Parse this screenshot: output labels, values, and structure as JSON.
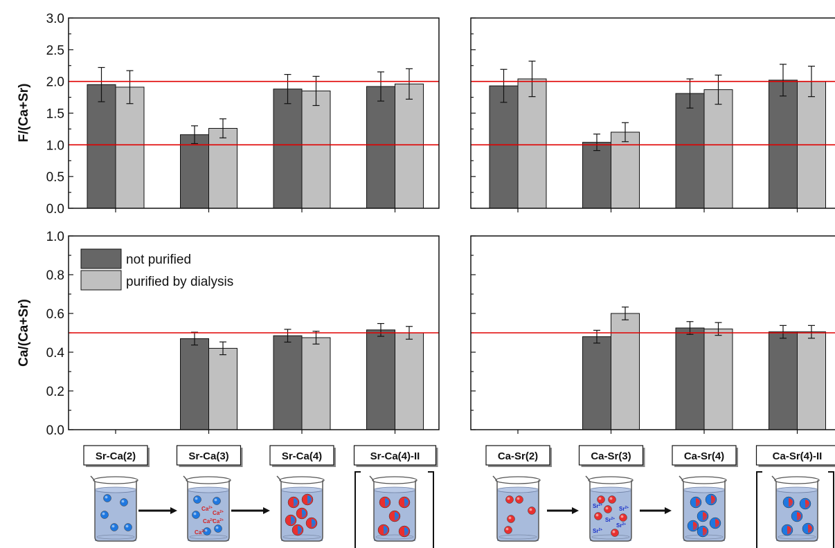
{
  "colors": {
    "not_purified": "#666666",
    "purified": "#c0c0c0",
    "reference_line": "#e00000",
    "blue_particle": "#1f78e0",
    "red_particle": "#e83030",
    "liquid": "#9fb4d8"
  },
  "legend": {
    "not_purified": "not purified",
    "purified": "purified by dialysis"
  },
  "ylabels": {
    "top": "F/(Ca+Sr)",
    "bottom": "Ca/(Ca+Sr)"
  },
  "categories_left": [
    "Sr-Ca(2)",
    "Sr-Ca(3)",
    "Sr-Ca(4)",
    "Sr-Ca(4)-II"
  ],
  "categories_right": [
    "Ca-Sr(2)",
    "Ca-Sr(3)",
    "Ca-Sr(4)",
    "Ca-Sr(4)-II"
  ],
  "ion_labels": {
    "ca": "Ca",
    "sr": "Sr",
    "charge": "2+"
  },
  "chart_data": [
    {
      "type": "bar",
      "panel": "top-left",
      "categories": [
        "Sr-Ca(2)",
        "Sr-Ca(3)",
        "Sr-Ca(4)",
        "Sr-Ca(4)-II"
      ],
      "ylabel": "F/(Ca+Sr)",
      "ylim": [
        0,
        3.0
      ],
      "yticks": [
        "0.0",
        "0.5",
        "1.0",
        "1.5",
        "2.0",
        "2.5",
        "3.0"
      ],
      "reference_lines": [
        1.0,
        2.0
      ],
      "series": [
        {
          "name": "not purified",
          "values": [
            1.95,
            1.16,
            1.88,
            1.92
          ],
          "errors": [
            0.27,
            0.14,
            0.23,
            0.23
          ]
        },
        {
          "name": "purified by dialysis",
          "values": [
            1.91,
            1.26,
            1.85,
            1.96
          ],
          "errors": [
            0.26,
            0.15,
            0.23,
            0.24
          ]
        }
      ]
    },
    {
      "type": "bar",
      "panel": "top-right",
      "categories": [
        "Ca-Sr(2)",
        "Ca-Sr(3)",
        "Ca-Sr(4)",
        "Ca-Sr(4)-II"
      ],
      "ylabel": "",
      "ylim": [
        0,
        3.0
      ],
      "reference_lines": [
        1.0,
        2.0
      ],
      "series": [
        {
          "name": "not purified",
          "values": [
            1.93,
            1.04,
            1.81,
            2.02
          ],
          "errors": [
            0.26,
            0.13,
            0.23,
            0.25
          ]
        },
        {
          "name": "purified by dialysis",
          "values": [
            2.04,
            1.2,
            1.87,
            2.0
          ],
          "errors": [
            0.28,
            0.15,
            0.23,
            0.24
          ]
        }
      ]
    },
    {
      "type": "bar",
      "panel": "bottom-left",
      "categories": [
        "Sr-Ca(2)",
        "Sr-Ca(3)",
        "Sr-Ca(4)",
        "Sr-Ca(4)-II"
      ],
      "ylabel": "Ca/(Ca+Sr)",
      "ylim": [
        0,
        1.0
      ],
      "yticks": [
        "0.0",
        "0.2",
        "0.4",
        "0.6",
        "0.8",
        "1.0"
      ],
      "reference_lines": [
        0.5
      ],
      "legend": "top-left",
      "series": [
        {
          "name": "not purified",
          "values": [
            null,
            0.47,
            0.485,
            0.515
          ],
          "errors": [
            null,
            0.033,
            0.033,
            0.033
          ]
        },
        {
          "name": "purified by dialysis",
          "values": [
            null,
            0.42,
            0.475,
            0.5
          ],
          "errors": [
            null,
            0.033,
            0.033,
            0.033
          ]
        }
      ]
    },
    {
      "type": "bar",
      "panel": "bottom-right",
      "categories": [
        "Ca-Sr(2)",
        "Ca-Sr(3)",
        "Ca-Sr(4)",
        "Ca-Sr(4)-II"
      ],
      "ylabel": "",
      "ylim": [
        0,
        1.0
      ],
      "reference_lines": [
        0.5
      ],
      "series": [
        {
          "name": "not purified",
          "values": [
            null,
            0.48,
            0.525,
            0.505
          ],
          "errors": [
            null,
            0.033,
            0.033,
            0.033
          ]
        },
        {
          "name": "purified by dialysis",
          "values": [
            null,
            0.6,
            0.52,
            0.505
          ],
          "errors": [
            null,
            0.033,
            0.033,
            0.033
          ]
        }
      ]
    }
  ]
}
